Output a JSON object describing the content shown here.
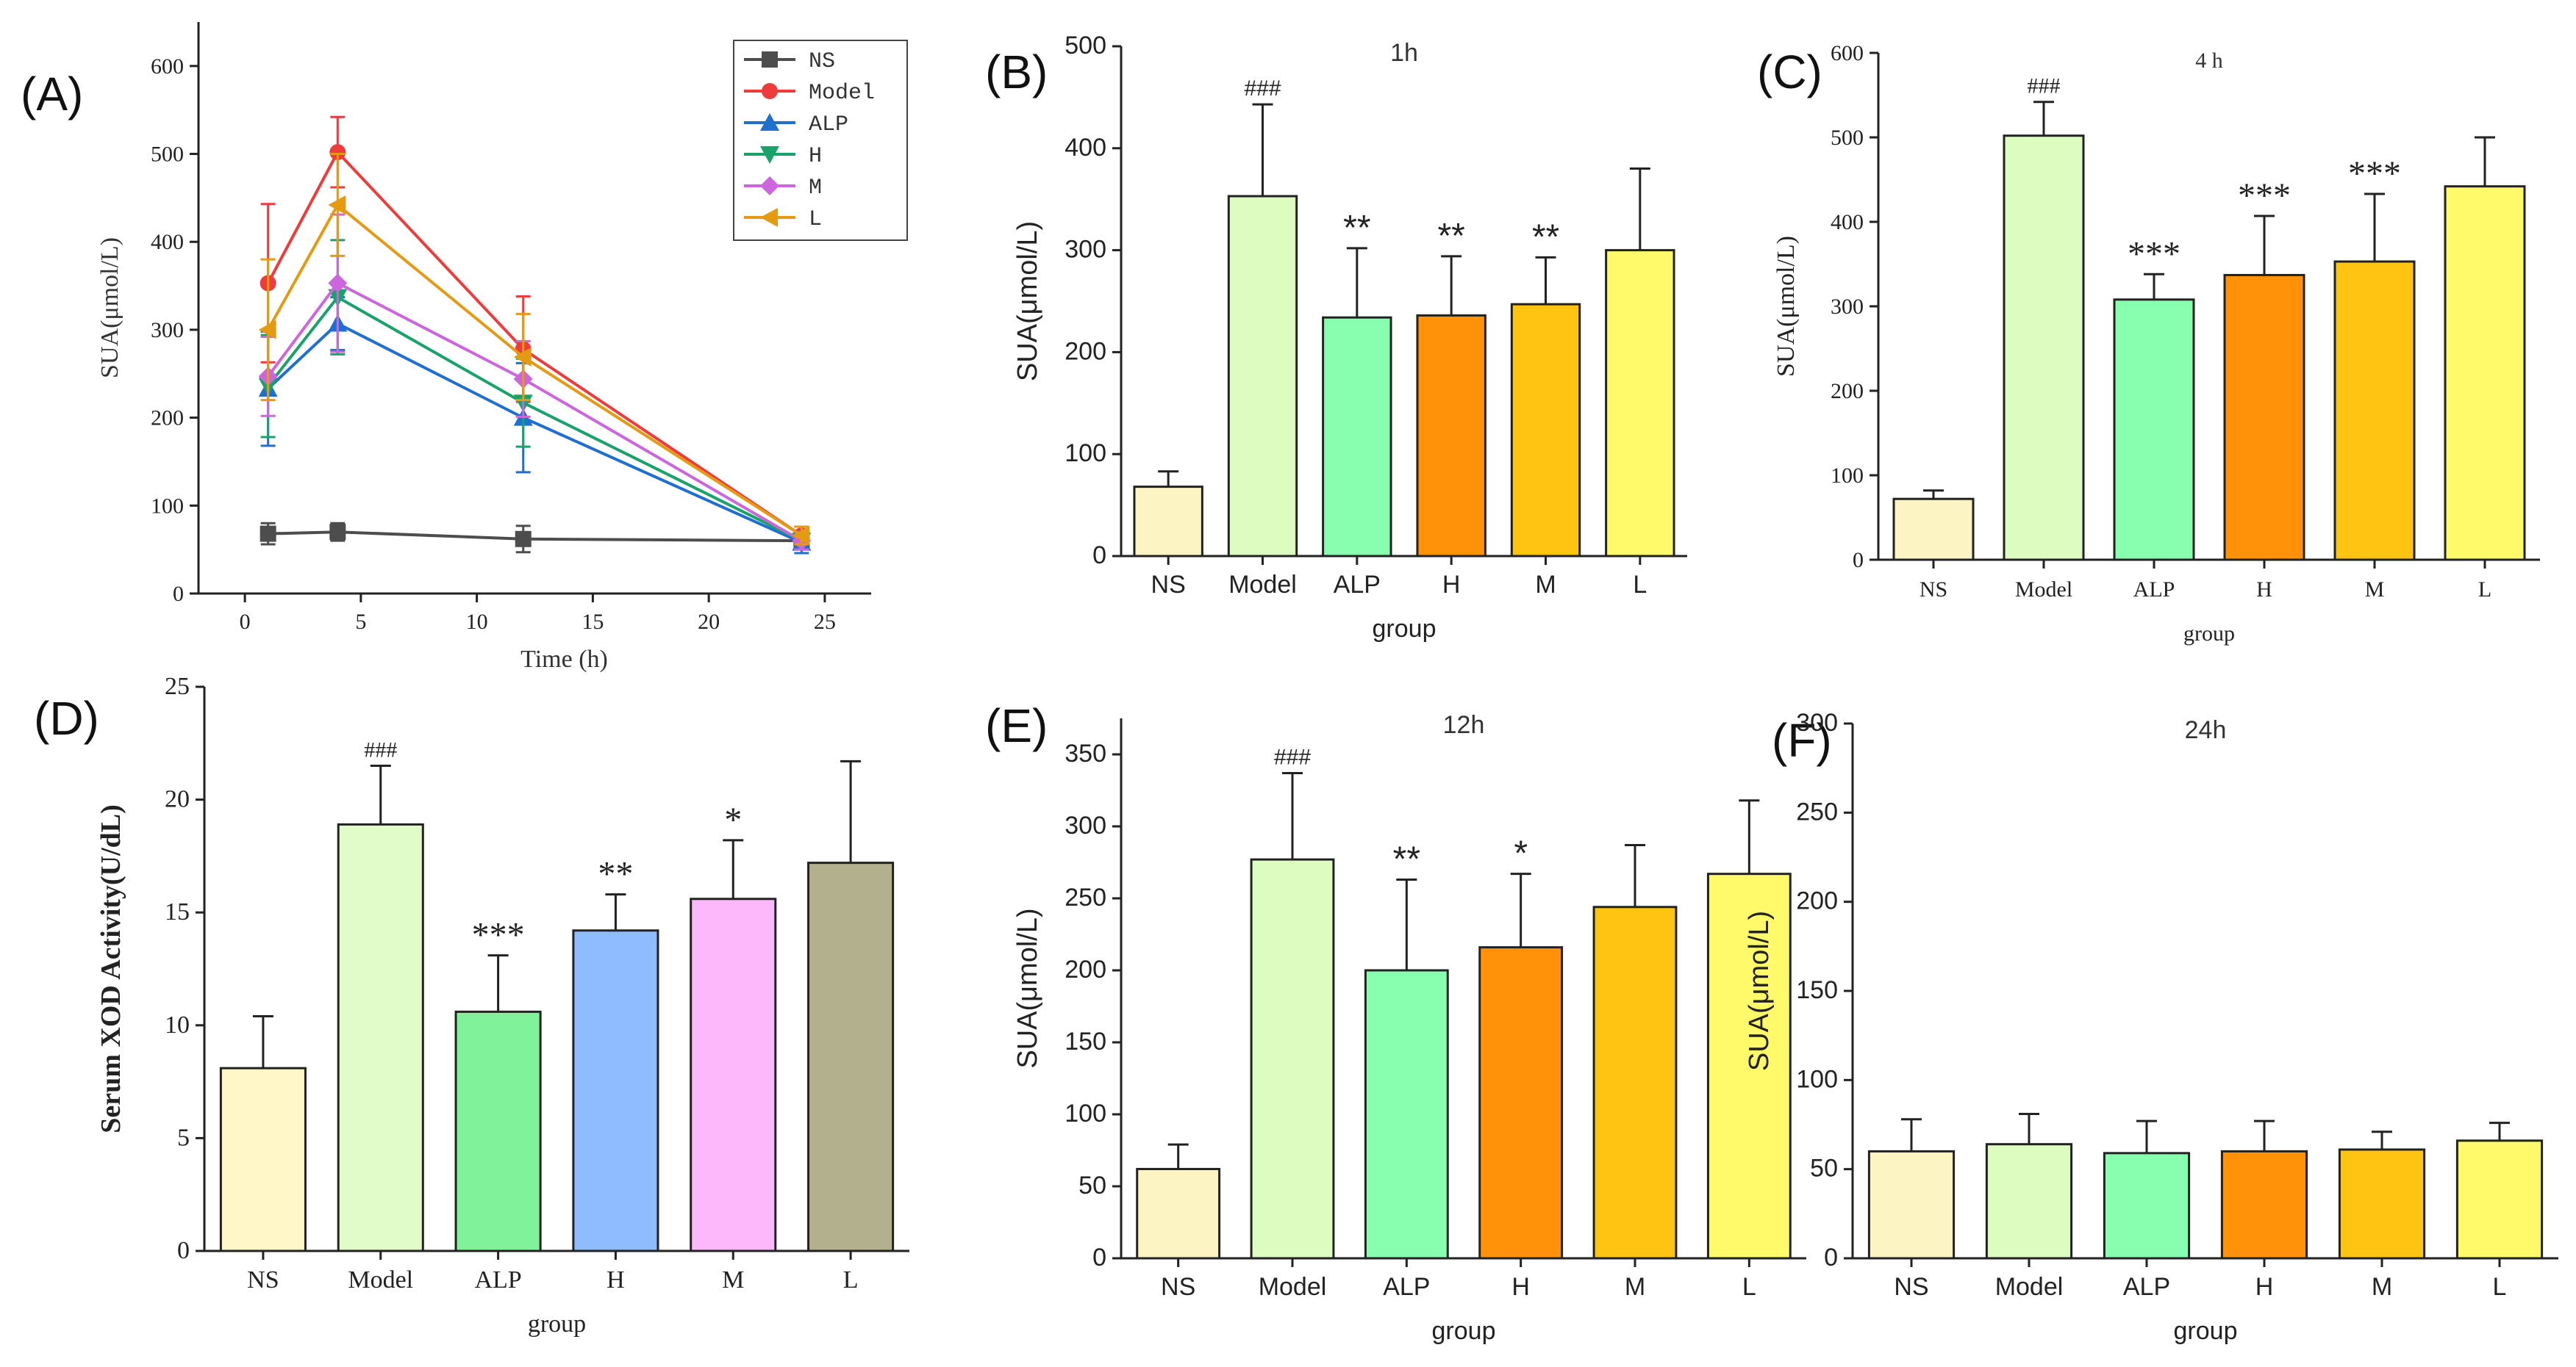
{
  "figure": {
    "panels": [
      {
        "id": "A",
        "label": "(A)"
      },
      {
        "id": "B",
        "label": "(B)"
      },
      {
        "id": "C",
        "label": "(C)"
      },
      {
        "id": "D",
        "label": "(D)"
      },
      {
        "id": "E",
        "label": "(E)"
      },
      {
        "id": "F",
        "label": "(F)"
      }
    ]
  },
  "chart_data": [
    {
      "panel": "A",
      "type": "line",
      "title": "",
      "xlabel": "Time (h)",
      "ylabel": "SUA(μmol/L)",
      "xlim": [
        -2,
        27
      ],
      "ylim": [
        0,
        650
      ],
      "xticks": [
        0,
        5,
        10,
        15,
        20,
        25
      ],
      "yticks": [
        0,
        100,
        200,
        300,
        400,
        500,
        600
      ],
      "x": [
        1,
        4,
        12,
        24
      ],
      "series": [
        {
          "name": "NS",
          "color": "#4d4d4d",
          "marker": "square",
          "values": [
            68,
            70,
            62,
            60
          ],
          "errors": [
            12,
            10,
            15,
            8
          ]
        },
        {
          "name": "Model",
          "color": "#ee3b3b",
          "marker": "circle",
          "values": [
            353,
            502,
            278,
            66
          ],
          "errors": [
            90,
            40,
            60,
            10
          ]
        },
        {
          "name": "ALP",
          "color": "#1f6fd1",
          "marker": "triangle-up",
          "values": [
            233,
            307,
            200,
            58
          ],
          "errors": [
            65,
            30,
            62,
            12
          ]
        },
        {
          "name": "H",
          "color": "#19a36b",
          "marker": "triangle-down",
          "values": [
            236,
            337,
            217,
            60
          ],
          "errors": [
            58,
            65,
            50,
            10
          ]
        },
        {
          "name": "M",
          "color": "#cc66dd",
          "marker": "diamond",
          "values": [
            247,
            353,
            244,
            60
          ],
          "errors": [
            45,
            78,
            43,
            10
          ]
        },
        {
          "name": "L",
          "color": "#e59a13",
          "marker": "triangle-left",
          "values": [
            300,
            442,
            269,
            66
          ],
          "errors": [
            80,
            58,
            49,
            10
          ]
        }
      ]
    },
    {
      "panel": "B",
      "type": "bar",
      "title": "1h",
      "xlabel": "group",
      "ylabel": "SUA(μmol/L)",
      "ylim": [
        0,
        500
      ],
      "yticks": [
        0,
        100,
        200,
        300,
        400,
        500
      ],
      "categories": [
        "NS",
        "Model",
        "ALP",
        "H",
        "M",
        "L"
      ],
      "values": [
        68,
        353,
        234,
        236,
        247,
        300
      ],
      "errors": [
        15,
        90,
        68,
        58,
        46,
        80
      ],
      "colors": [
        "#fdf4c4",
        "#dcfcc0",
        "#88ffae",
        "#ff9208",
        "#ffc312",
        "#fffa6a"
      ],
      "annotations": [
        "",
        "###",
        "**",
        "**",
        "**",
        ""
      ]
    },
    {
      "panel": "C",
      "type": "bar",
      "title": "4 h",
      "xlabel": "group",
      "ylabel": "SUA(μmol/L)",
      "ylim": [
        0,
        600
      ],
      "yticks": [
        0,
        100,
        200,
        300,
        400,
        500,
        600
      ],
      "categories": [
        "NS",
        "Model",
        "ALP",
        "H",
        "M",
        "L"
      ],
      "values": [
        72,
        502,
        308,
        337,
        353,
        442
      ],
      "errors": [
        10,
        40,
        30,
        70,
        80,
        58
      ],
      "colors": [
        "#fdf4c4",
        "#dcfcc0",
        "#88ffae",
        "#ff9208",
        "#ffc312",
        "#fffa6a"
      ],
      "annotations": [
        "",
        "###",
        "***",
        "***",
        "***",
        ""
      ]
    },
    {
      "panel": "D",
      "type": "bar",
      "title": "",
      "xlabel": "group",
      "ylabel": "Serum XOD Activity(U/dL)",
      "ylim": [
        0,
        25
      ],
      "yticks": [
        0,
        5,
        10,
        15,
        20,
        25
      ],
      "categories": [
        "NS",
        "Model",
        "ALP",
        "H",
        "M",
        "L"
      ],
      "values": [
        8.1,
        18.9,
        10.6,
        14.2,
        15.6,
        17.2
      ],
      "errors": [
        2.3,
        2.6,
        2.5,
        1.6,
        2.6,
        4.5
      ],
      "colors": [
        "#fff7c8",
        "#e1fcc8",
        "#7ff29a",
        "#8ebcff",
        "#fdb8fb",
        "#b3b08e"
      ],
      "annotations": [
        "",
        "###",
        "***",
        "**",
        "*",
        ""
      ]
    },
    {
      "panel": "E",
      "type": "bar",
      "title": "12h",
      "xlabel": "group",
      "ylabel": "SUA(μmol/L)",
      "ylim": [
        0,
        375
      ],
      "yticks": [
        0,
        50,
        100,
        150,
        200,
        250,
        300,
        350
      ],
      "categories": [
        "NS",
        "Model",
        "ALP",
        "H",
        "M",
        "L"
      ],
      "values": [
        62,
        277,
        200,
        216,
        244,
        267
      ],
      "errors": [
        17,
        60,
        63,
        51,
        43,
        51
      ],
      "colors": [
        "#fdf4c4",
        "#dcfcc0",
        "#88ffae",
        "#ff9208",
        "#ffc312",
        "#fffa6a"
      ],
      "annotations": [
        "",
        "###",
        "**",
        "*",
        "",
        ""
      ]
    },
    {
      "panel": "F",
      "type": "bar",
      "title": "24h",
      "xlabel": "group",
      "ylabel": "SUA(μmol/L)",
      "ylim": [
        0,
        300
      ],
      "yticks": [
        0,
        50,
        100,
        150,
        200,
        250,
        300
      ],
      "categories": [
        "NS",
        "Model",
        "ALP",
        "H",
        "M",
        "L"
      ],
      "values": [
        60,
        64,
        59,
        60,
        61,
        66
      ],
      "errors": [
        18,
        17,
        18,
        17,
        10,
        10
      ],
      "colors": [
        "#fdf4c4",
        "#dcfcc0",
        "#88ffae",
        "#ff9208",
        "#ffc312",
        "#fffa6a"
      ],
      "annotations": [
        "",
        "",
        "",
        "",
        "",
        ""
      ]
    }
  ]
}
